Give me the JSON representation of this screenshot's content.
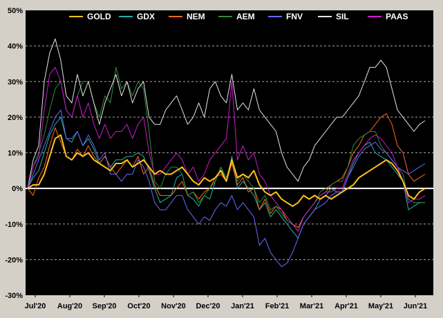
{
  "chart_data": {
    "type": "line",
    "title": "",
    "xlabel": "",
    "ylabel": "",
    "x_tick_labels": [
      "Jul'20",
      "Aug'20",
      "Sep'20",
      "Oct'20",
      "Nov'20",
      "Dec'20",
      "Jan'21",
      "Feb'21",
      "Mar'21",
      "Apr'21",
      "May'21",
      "Jun'21"
    ],
    "y_tick_labels": [
      "50%",
      "40%",
      "30%",
      "20%",
      "10%",
      "0%",
      "-10%",
      "-20%",
      "-30%"
    ],
    "ylim": [
      -30,
      50
    ],
    "y_unit": "%",
    "grid": "horizontal dashed",
    "legend_position": "top",
    "colors": {
      "background": "#000000",
      "frame": "#d4d0c8",
      "grid": "#aaaaaa",
      "zero_line": "#ffffff"
    },
    "series": [
      {
        "name": "GOLD",
        "color": "#ffc21a",
        "values": [
          0,
          1,
          1,
          4,
          9,
          14,
          15,
          9,
          8,
          10,
          9,
          10,
          8,
          7,
          6,
          5,
          7,
          7,
          8,
          6,
          7,
          8,
          6,
          4,
          5,
          4,
          4,
          5,
          6,
          4,
          2,
          1,
          3,
          2,
          3,
          5,
          2,
          8,
          3,
          4,
          3,
          5,
          1,
          -1,
          -2,
          -1,
          -3,
          -4,
          -5,
          -4,
          -2,
          -3,
          -2,
          -3,
          -2,
          -3,
          -2,
          -1,
          0,
          1,
          3,
          4,
          5,
          6,
          7,
          8,
          7,
          5,
          2,
          -2,
          -3,
          -1,
          0
        ]
      },
      {
        "name": "GDX",
        "color": "#22b5a8",
        "values": [
          0,
          3,
          5,
          10,
          15,
          18,
          20,
          14,
          13,
          16,
          12,
          14,
          11,
          7,
          9,
          6,
          8,
          8,
          9,
          9,
          10,
          9,
          5,
          0,
          -4,
          -3,
          -2,
          3,
          4,
          -2,
          -3,
          -5,
          -2,
          -3,
          2,
          6,
          2,
          9,
          0,
          2,
          0,
          -2,
          -6,
          -4,
          -8,
          -6,
          -8,
          -10,
          -12,
          -14,
          -10,
          -8,
          -6,
          -3,
          -2,
          0,
          -1,
          -1,
          3,
          7,
          10,
          12,
          13,
          10,
          9,
          8,
          6,
          4,
          2,
          -6,
          -5,
          -4,
          -4
        ]
      },
      {
        "name": "NEM",
        "color": "#ff6a1a",
        "values": [
          0,
          -2,
          3,
          6,
          12,
          17,
          13,
          9,
          8,
          11,
          9,
          12,
          9,
          7,
          9,
          6,
          4,
          6,
          8,
          6,
          9,
          4,
          6,
          1,
          -2,
          -2,
          -2,
          0,
          2,
          -2,
          -1,
          -3,
          -1,
          0,
          3,
          4,
          2,
          7,
          1,
          3,
          -1,
          0,
          -6,
          -3,
          -7,
          -5,
          -6,
          -9,
          -10,
          -11,
          -8,
          -6,
          -4,
          -2,
          -1,
          1,
          2,
          3,
          6,
          10,
          12,
          15,
          16,
          18,
          20,
          21,
          18,
          12,
          10,
          4,
          2,
          3,
          4
        ]
      },
      {
        "name": "AEM",
        "color": "#2e8b3a",
        "values": [
          0,
          6,
          10,
          15,
          22,
          28,
          30,
          22,
          20,
          26,
          30,
          30,
          24,
          20,
          26,
          24,
          34,
          28,
          30,
          26,
          30,
          28,
          16,
          2,
          0,
          4,
          6,
          6,
          4,
          -2,
          -1,
          -4,
          -2,
          0,
          2,
          6,
          3,
          8,
          2,
          4,
          2,
          0,
          -4,
          -2,
          -6,
          -5,
          -7,
          -9,
          -10,
          -12,
          -8,
          -6,
          -4,
          -1,
          0,
          1,
          2,
          2,
          6,
          12,
          14,
          15,
          16,
          16,
          12,
          10,
          8,
          6,
          4,
          -3,
          -4,
          -4,
          -4
        ]
      },
      {
        "name": "FNV",
        "color": "#6a6aff",
        "values": [
          0,
          4,
          8,
          12,
          16,
          20,
          22,
          14,
          14,
          16,
          12,
          15,
          12,
          8,
          10,
          4,
          4,
          2,
          4,
          4,
          8,
          6,
          2,
          -4,
          -6,
          -6,
          -4,
          -2,
          -2,
          -6,
          -8,
          -10,
          -8,
          -9,
          -6,
          -4,
          -5,
          -2,
          -6,
          -4,
          -6,
          -8,
          -16,
          -14,
          -18,
          -20,
          -22,
          -21,
          -18,
          -14,
          -10,
          -8,
          -6,
          -5,
          -4,
          -2,
          -1,
          -1,
          3,
          6,
          9,
          11,
          12,
          13,
          11,
          10,
          8,
          6,
          5,
          4,
          5,
          6,
          7
        ]
      },
      {
        "name": "SIL",
        "color": "#e6e6e6",
        "values": [
          0,
          8,
          12,
          30,
          38,
          42,
          36,
          26,
          24,
          32,
          26,
          30,
          24,
          18,
          24,
          28,
          32,
          26,
          30,
          24,
          28,
          30,
          20,
          18,
          18,
          22,
          24,
          26,
          22,
          18,
          20,
          24,
          20,
          28,
          30,
          26,
          24,
          32,
          22,
          24,
          22,
          28,
          22,
          20,
          18,
          16,
          10,
          6,
          4,
          2,
          6,
          8,
          12,
          14,
          16,
          18,
          20,
          20,
          22,
          24,
          26,
          30,
          34,
          34,
          36,
          34,
          28,
          22,
          20,
          18,
          16,
          18,
          19
        ]
      },
      {
        "name": "PAAS",
        "color": "#d11ad1",
        "values": [
          0,
          6,
          9,
          22,
          32,
          34,
          30,
          22,
          20,
          26,
          20,
          24,
          18,
          14,
          18,
          14,
          16,
          16,
          18,
          14,
          18,
          20,
          10,
          4,
          4,
          6,
          8,
          10,
          8,
          4,
          6,
          2,
          4,
          8,
          10,
          12,
          14,
          30,
          8,
          12,
          8,
          10,
          4,
          2,
          -2,
          -4,
          -6,
          -8,
          -10,
          -12,
          -8,
          -6,
          -4,
          -2,
          -1,
          -1,
          0,
          0,
          4,
          8,
          10,
          12,
          14,
          15,
          14,
          12,
          10,
          6,
          2,
          -4,
          -3,
          -3,
          -2
        ]
      }
    ]
  }
}
